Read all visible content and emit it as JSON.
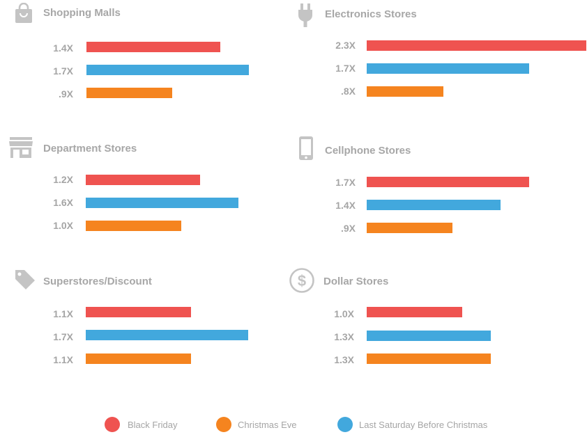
{
  "colors": {
    "black_friday": "#ef5350",
    "christmas_eve": "#f5841f",
    "last_saturday": "#42a8dd",
    "icon": "#c4c4c4",
    "text": "#a5a5a5"
  },
  "legend": [
    {
      "label": "Black Friday",
      "color": "#ef5350"
    },
    {
      "label": "Christmas Eve",
      "color": "#f5841f"
    },
    {
      "label": "Last Saturday Before Christmas",
      "color": "#42a8dd"
    }
  ],
  "chart_data": [
    {
      "type": "bar",
      "title": "Shopping Malls",
      "icon": "shopping-bag-icon",
      "rows": [
        {
          "series": "Black Friday",
          "value": 1.4,
          "label": "1.4X"
        },
        {
          "series": "Last Saturday Before Christmas",
          "value": 1.7,
          "label": "1.7X"
        },
        {
          "series": "Christmas Eve",
          "value": 0.9,
          "label": ".9X"
        }
      ]
    },
    {
      "type": "bar",
      "title": "Electronics Stores",
      "icon": "plug-icon",
      "rows": [
        {
          "series": "Black Friday",
          "value": 2.3,
          "label": "2.3X"
        },
        {
          "series": "Last Saturday Before Christmas",
          "value": 1.7,
          "label": "1.7X"
        },
        {
          "series": "Christmas Eve",
          "value": 0.8,
          "label": ".8X"
        }
      ]
    },
    {
      "type": "bar",
      "title": "Department Stores",
      "icon": "storefront-icon",
      "rows": [
        {
          "series": "Black Friday",
          "value": 1.2,
          "label": "1.2X"
        },
        {
          "series": "Last Saturday Before Christmas",
          "value": 1.6,
          "label": "1.6X"
        },
        {
          "series": "Christmas Eve",
          "value": 1.0,
          "label": "1.0X"
        }
      ]
    },
    {
      "type": "bar",
      "title": "Cellphone Stores",
      "icon": "smartphone-icon",
      "rows": [
        {
          "series": "Black Friday",
          "value": 1.7,
          "label": "1.7X"
        },
        {
          "series": "Last Saturday Before Christmas",
          "value": 1.4,
          "label": "1.4X"
        },
        {
          "series": "Christmas Eve",
          "value": 0.9,
          "label": ".9X"
        }
      ]
    },
    {
      "type": "bar",
      "title": "Superstores/Discount",
      "icon": "price-tag-icon",
      "rows": [
        {
          "series": "Black Friday",
          "value": 1.1,
          "label": "1.1X"
        },
        {
          "series": "Last Saturday Before Christmas",
          "value": 1.7,
          "label": "1.7X"
        },
        {
          "series": "Christmas Eve",
          "value": 1.1,
          "label": "1.1X"
        }
      ]
    },
    {
      "type": "bar",
      "title": "Dollar Stores",
      "icon": "dollar-circle-icon",
      "rows": [
        {
          "series": "Black Friday",
          "value": 1.0,
          "label": "1.0X"
        },
        {
          "series": "Last Saturday Before Christmas",
          "value": 1.3,
          "label": "1.3X"
        },
        {
          "series": "Christmas Eve",
          "value": 1.3,
          "label": "1.3X"
        }
      ]
    }
  ]
}
